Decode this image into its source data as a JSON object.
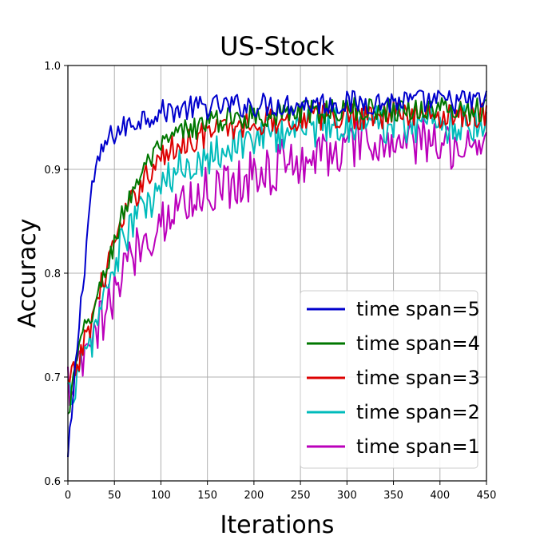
{
  "chart_data": {
    "type": "line",
    "title": "US-Stock",
    "xlabel": "Iterations",
    "ylabel": "Accuracy",
    "xlim": [
      0,
      450
    ],
    "ylim": [
      0.6,
      1.0
    ],
    "xticks": [
      0,
      50,
      100,
      150,
      200,
      250,
      300,
      350,
      400,
      450
    ],
    "yticks": [
      0.6,
      0.7,
      0.8,
      0.9,
      1.0
    ],
    "xtick_labels": [
      "0",
      "50",
      "100",
      "150",
      "200",
      "250",
      "300",
      "350",
      "400",
      "450"
    ],
    "ytick_labels": [
      "0.6",
      "0.7",
      "0.8",
      "0.9",
      "1.0"
    ],
    "grid": true,
    "legend_position": "bottom-right",
    "series": [
      {
        "name": "time span=5",
        "color": "#0000cc",
        "x": [
          0,
          5,
          10,
          15,
          20,
          25,
          30,
          35,
          40,
          50,
          60,
          70,
          80,
          90,
          100,
          120,
          150,
          200,
          250,
          300,
          350,
          400,
          450
        ],
        "y": [
          0.62,
          0.67,
          0.73,
          0.78,
          0.83,
          0.88,
          0.9,
          0.91,
          0.925,
          0.935,
          0.94,
          0.945,
          0.95,
          0.953,
          0.955,
          0.958,
          0.96,
          0.962,
          0.963,
          0.964,
          0.965,
          0.965,
          0.966
        ],
        "noise": 0.012
      },
      {
        "name": "time span=4",
        "color": "#007700",
        "x": [
          0,
          10,
          20,
          30,
          40,
          50,
          60,
          70,
          80,
          90,
          100,
          120,
          150,
          200,
          250,
          300,
          350,
          400,
          450
        ],
        "y": [
          0.66,
          0.72,
          0.75,
          0.77,
          0.8,
          0.83,
          0.86,
          0.88,
          0.9,
          0.91,
          0.92,
          0.935,
          0.945,
          0.952,
          0.955,
          0.957,
          0.958,
          0.958,
          0.958
        ],
        "noise": 0.012
      },
      {
        "name": "time span=3",
        "color": "#dd0000",
        "x": [
          0,
          10,
          20,
          30,
          40,
          50,
          60,
          70,
          80,
          90,
          100,
          120,
          150,
          200,
          250,
          300,
          350,
          400,
          450
        ],
        "y": [
          0.69,
          0.71,
          0.74,
          0.77,
          0.8,
          0.83,
          0.85,
          0.87,
          0.89,
          0.9,
          0.91,
          0.925,
          0.935,
          0.945,
          0.95,
          0.952,
          0.953,
          0.953,
          0.953
        ],
        "noise": 0.014
      },
      {
        "name": "time span=2",
        "color": "#00bbbb",
        "x": [
          0,
          10,
          20,
          30,
          40,
          50,
          60,
          70,
          80,
          90,
          100,
          120,
          150,
          200,
          250,
          300,
          350,
          400,
          450
        ],
        "y": [
          0.68,
          0.7,
          0.72,
          0.75,
          0.78,
          0.81,
          0.83,
          0.85,
          0.86,
          0.87,
          0.88,
          0.9,
          0.915,
          0.93,
          0.94,
          0.945,
          0.945,
          0.945,
          0.945
        ],
        "noise": 0.02
      },
      {
        "name": "time span=1",
        "color": "#bb00bb",
        "x": [
          0,
          10,
          20,
          30,
          40,
          50,
          60,
          70,
          80,
          90,
          100,
          120,
          150,
          200,
          250,
          300,
          350,
          400,
          450
        ],
        "y": [
          0.69,
          0.7,
          0.72,
          0.74,
          0.76,
          0.78,
          0.8,
          0.82,
          0.83,
          0.84,
          0.85,
          0.865,
          0.88,
          0.895,
          0.91,
          0.92,
          0.925,
          0.925,
          0.925
        ],
        "noise": 0.025
      }
    ]
  }
}
